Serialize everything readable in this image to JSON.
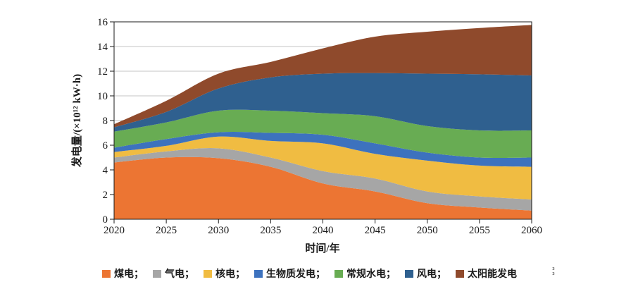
{
  "axes": {
    "x_title": "时间/年",
    "y_title": "发电量/(×10¹² kW·h)"
  },
  "colors": {
    "grid": "#C6C6C6",
    "axis": "#1A1A1A",
    "text": "#1A1A1A",
    "background": "#FFFFFF"
  },
  "artifact_mark": "ɜ\nɜ",
  "chart_data": {
    "type": "area",
    "stacked": true,
    "title": "",
    "xlabel": "时间/年",
    "ylabel": "发电量/(×10¹² kW·h)",
    "x": [
      2020,
      2025,
      2030,
      2035,
      2040,
      2045,
      2050,
      2055,
      2060
    ],
    "xlim": [
      2020,
      2060
    ],
    "ylim": [
      0,
      16
    ],
    "y_ticks": [
      0,
      2,
      4,
      6,
      8,
      10,
      12,
      14,
      16
    ],
    "grid": true,
    "legend_position": "bottom",
    "series": [
      {
        "id": "coal",
        "name": "煤电",
        "color": "#EC7533",
        "values": [
          4.6,
          5.0,
          4.95,
          4.25,
          2.9,
          2.25,
          1.3,
          0.95,
          0.7
        ]
      },
      {
        "id": "gas",
        "name": "气电",
        "color": "#A6A6A6",
        "values": [
          0.4,
          0.5,
          0.8,
          0.75,
          1.0,
          1.05,
          0.95,
          0.9,
          0.9
        ]
      },
      {
        "id": "nuclear",
        "name": "核电",
        "color": "#F0BC42",
        "values": [
          0.45,
          0.45,
          0.95,
          1.35,
          2.25,
          2.0,
          2.5,
          2.5,
          2.65
        ]
      },
      {
        "id": "biomass",
        "name": "生物质发电",
        "color": "#3D72BE",
        "values": [
          0.35,
          0.55,
          0.35,
          0.65,
          0.7,
          0.85,
          0.65,
          0.65,
          0.75
        ]
      },
      {
        "id": "hydro",
        "name": "常规水电",
        "color": "#68AC53",
        "values": [
          1.3,
          1.35,
          1.75,
          1.8,
          1.75,
          2.2,
          2.15,
          2.2,
          2.2
        ]
      },
      {
        "id": "wind",
        "name": "风电",
        "color": "#2F608F",
        "values": [
          0.35,
          0.85,
          1.8,
          2.7,
          3.2,
          3.5,
          4.25,
          4.55,
          4.45
        ]
      },
      {
        "id": "solar",
        "name": "太阳能发电",
        "color": "#8F4A2C",
        "values": [
          0.25,
          0.9,
          1.2,
          1.25,
          2.05,
          2.95,
          3.4,
          3.75,
          4.1
        ]
      }
    ],
    "legend_labels": [
      "煤电；",
      "气电；",
      "核电；",
      "生物质发电；",
      "常规水电；",
      "风电；",
      "太阳能发电"
    ]
  }
}
